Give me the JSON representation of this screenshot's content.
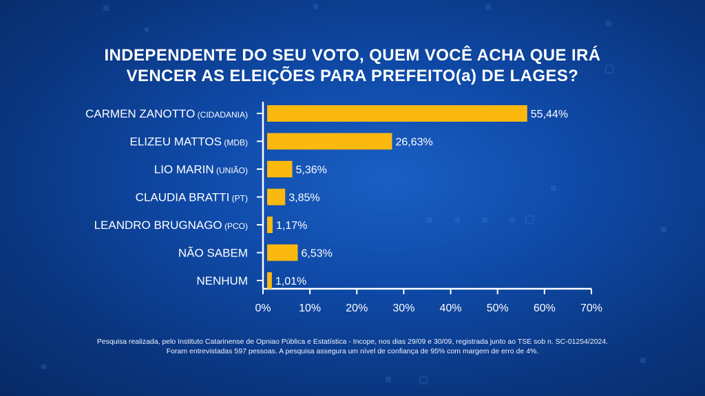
{
  "title_lines": [
    "INDEPENDENTE DO SEU VOTO, QUEM VOCÊ ACHA QUE IRÁ",
    "VENCER AS ELEIÇÕES PARA PREFEITO(a) DE LAGES?"
  ],
  "chart_data": {
    "type": "bar",
    "orientation": "horizontal",
    "categories": [
      {
        "name": "CARMEN ZANOTTO",
        "party": "(CIDADANIA)"
      },
      {
        "name": "ELIZEU MATTOS",
        "party": "(MDB)"
      },
      {
        "name": "LIO MARIN",
        "party": "(UNIÃO)"
      },
      {
        "name": "CLAUDIA BRATTI",
        "party": "(PT)"
      },
      {
        "name": "LEANDRO BRUGNAGO",
        "party": "(PCO)"
      },
      {
        "name": "NÃO SABEM",
        "party": ""
      },
      {
        "name": "NENHUM",
        "party": ""
      }
    ],
    "values": [
      55.44,
      26.63,
      5.36,
      3.85,
      1.17,
      6.53,
      1.01
    ],
    "value_labels": [
      "55,44%",
      "26,63%",
      "5,36%",
      "3,85%",
      "1,17%",
      "6,53%",
      "1,01%"
    ],
    "xlim": [
      0,
      70
    ],
    "xticks": [
      0,
      10,
      20,
      30,
      40,
      50,
      60,
      70
    ],
    "xtick_labels": [
      "0%",
      "10%",
      "20%",
      "30%",
      "40%",
      "50%",
      "60%",
      "70%"
    ],
    "grid": false,
    "bar_color": "#fbb80f"
  },
  "footnote_lines": [
    "Pesquisa realizada, pelo Instituto Catarinense de Opniao Pública e Estatística - Incope, nos dias 29/09 e 30/09, registrada junto ao TSE sob n. SC-01254/2024.",
    "Foram entrevistadas 597 pessoas. A pesquisa assegura um nível de confiança de 95% com margem de erro de 4%."
  ]
}
